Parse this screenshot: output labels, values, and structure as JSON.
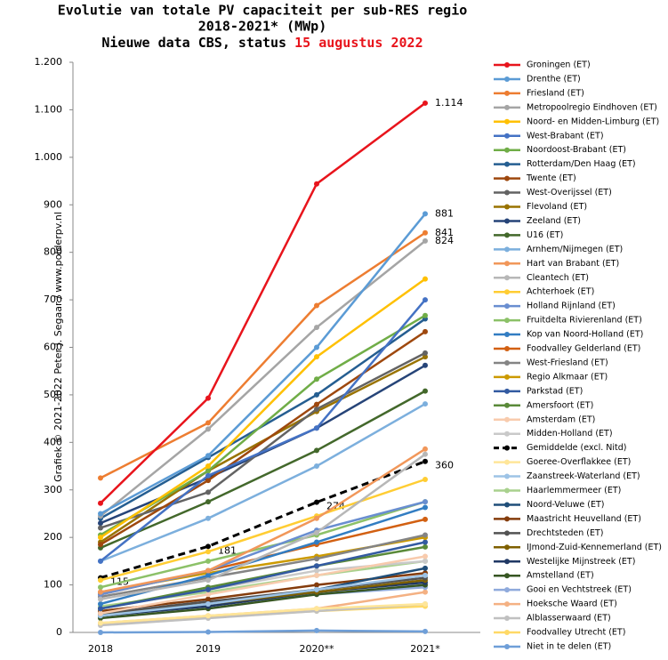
{
  "chart_data": {
    "type": "line",
    "title": "Evolutie van totale PV capaciteit per sub-RES regio",
    "subtitle": "2018-2021* (MWp)",
    "status_text": "Nieuwe data CBS, status",
    "status_date": "15 augustus 2022",
    "side_text": "Grafiek © 2021-2022 Peter J. Segaar / www.polderpv.nl",
    "categories": [
      "2018",
      "2019",
      "2020**",
      "2021*"
    ],
    "ylim": [
      0,
      1200
    ],
    "yticks": [
      0,
      100,
      200,
      300,
      400,
      500,
      600,
      700,
      800,
      900,
      {
        "value": 1000,
        "label": "1.000"
      },
      {
        "value": 1100,
        "label": "1.100"
      },
      {
        "value": 1200,
        "label": "1.200"
      }
    ],
    "series": [
      {
        "name": "Groningen (ET)",
        "color": "#e8141c",
        "values": [
          272,
          493,
          944,
          1114
        ],
        "value_labels": [
          null,
          null,
          null,
          "1.114"
        ]
      },
      {
        "name": "Drenthe (ET)",
        "color": "#5b9bd5",
        "values": [
          250,
          372,
          600,
          881
        ],
        "value_labels": [
          null,
          null,
          null,
          "881"
        ]
      },
      {
        "name": "Friesland (ET)",
        "color": "#ed7d31",
        "values": [
          325,
          441,
          688,
          841
        ],
        "value_labels": [
          null,
          null,
          null,
          "841"
        ]
      },
      {
        "name": "Metropoolregio Eindhoven (ET)",
        "color": "#a5a5a5",
        "values": [
          245,
          428,
          642,
          824
        ],
        "value_labels": [
          null,
          null,
          null,
          "824"
        ]
      },
      {
        "name": "Noord- en Midden-Limburg (ET)",
        "color": "#ffc000",
        "values": [
          200,
          350,
          580,
          744
        ]
      },
      {
        "name": "West-Brabant (ET)",
        "color": "#4472c4",
        "values": [
          150,
          330,
          430,
          700
        ]
      },
      {
        "name": "Noordoost-Brabant (ET)",
        "color": "#70ad47",
        "values": [
          205,
          340,
          533,
          667
        ]
      },
      {
        "name": "Rotterdam/Den Haag (ET)",
        "color": "#255e91",
        "values": [
          240,
          368,
          500,
          660
        ]
      },
      {
        "name": "Twente (ET)",
        "color": "#9e480e",
        "values": [
          185,
          320,
          480,
          633
        ]
      },
      {
        "name": "West-Overijssel (ET)",
        "color": "#636363",
        "values": [
          220,
          295,
          470,
          588
        ]
      },
      {
        "name": "Flevoland (ET)",
        "color": "#997300",
        "values": [
          190,
          340,
          465,
          580
        ]
      },
      {
        "name": "Zeeland (ET)",
        "color": "#264478",
        "values": [
          230,
          325,
          430,
          562
        ]
      },
      {
        "name": "U16 (ET)",
        "color": "#43682b",
        "values": [
          178,
          275,
          383,
          508
        ]
      },
      {
        "name": "Arnhem/Nijmegen (ET)",
        "color": "#7cafdd",
        "values": [
          150,
          240,
          350,
          481
        ]
      },
      {
        "name": "Hart van Brabant (ET)",
        "color": "#f1975a",
        "values": [
          85,
          130,
          240,
          386
        ]
      },
      {
        "name": "Cleantech (ET)",
        "color": "#b7b7b7",
        "values": [
          70,
          110,
          210,
          375
        ]
      },
      {
        "name": "Achterhoek (ET)",
        "color": "#ffcd33",
        "values": [
          110,
          170,
          245,
          322
        ]
      },
      {
        "name": "Holland Rijnland (ET)",
        "color": "#698ed0",
        "values": [
          80,
          130,
          215,
          275
        ]
      },
      {
        "name": "Fruitdelta Rivierenland (ET)",
        "color": "#8cc168",
        "values": [
          95,
          150,
          205,
          275
        ]
      },
      {
        "name": "Kop van Noord-Holland (ET)",
        "color": "#327dc2",
        "values": [
          60,
          120,
          190,
          263
        ]
      },
      {
        "name": "Foodvalley Gelderland (ET)",
        "color": "#d26012",
        "values": [
          80,
          130,
          185,
          238
        ]
      },
      {
        "name": "West-Friesland (ET)",
        "color": "#848484",
        "values": [
          75,
          115,
          155,
          205
        ]
      },
      {
        "name": "Regio Alkmaar (ET)",
        "color": "#cc9a00",
        "values": [
          85,
          125,
          160,
          200
        ]
      },
      {
        "name": "Parkstad (ET)",
        "color": "#335aa1",
        "values": [
          50,
          90,
          140,
          190
        ]
      },
      {
        "name": "Amersfoort (ET)",
        "color": "#5a8a39",
        "values": [
          50,
          95,
          140,
          180
        ]
      },
      {
        "name": "Amsterdam (ET)",
        "color": "#f8cbad",
        "values": [
          40,
          80,
          120,
          160
        ]
      },
      {
        "name": "Midden-Holland (ET)",
        "color": "#c9c9c9",
        "values": [
          50,
          90,
          130,
          150
        ]
      },
      {
        "name": "Gemiddelde (excl. Nitd)",
        "color": "#000000",
        "dashed": true,
        "values": [
          115,
          181,
          274,
          360
        ],
        "value_labels": [
          "115",
          "181",
          "274",
          "360"
        ]
      },
      {
        "name": "Goeree-Overflakkee (ET)",
        "color": "#ffe699",
        "values": [
          20,
          35,
          50,
          60
        ]
      },
      {
        "name": "Zaanstreek-Waterland (ET)",
        "color": "#9dc3e6",
        "values": [
          35,
          60,
          90,
          120
        ]
      },
      {
        "name": "Haarlemmermeer (ET)",
        "color": "#a9d18e",
        "values": [
          55,
          85,
          120,
          150
        ]
      },
      {
        "name": "Noord-Veluwe (ET)",
        "color": "#1f4e79",
        "values": [
          35,
          60,
          90,
          135
        ]
      },
      {
        "name": "Maastricht Heuvelland (ET)",
        "color": "#843c0c",
        "values": [
          45,
          70,
          100,
          125
        ]
      },
      {
        "name": "Drechtsteden (ET)",
        "color": "#525252",
        "values": [
          40,
          65,
          90,
          115
        ]
      },
      {
        "name": "IJmond-Zuid-Kennemerland (ET)",
        "color": "#7f6000",
        "values": [
          40,
          60,
          85,
          110
        ]
      },
      {
        "name": "Westelijke Mijnstreek (ET)",
        "color": "#203864",
        "values": [
          35,
          55,
          85,
          105
        ]
      },
      {
        "name": "Amstelland (ET)",
        "color": "#375623",
        "values": [
          30,
          50,
          80,
          100
        ]
      },
      {
        "name": "Gooi en Vechtstreek (ET)",
        "color": "#8faadc",
        "values": [
          40,
          60,
          80,
          95
        ]
      },
      {
        "name": "Hoeksche Waard (ET)",
        "color": "#f4b183",
        "values": [
          20,
          35,
          50,
          85
        ]
      },
      {
        "name": "Alblasserwaard (ET)",
        "color": "#c0c0c0",
        "values": [
          15,
          30,
          45,
          60
        ]
      },
      {
        "name": "Foodvalley Utrecht (ET)",
        "color": "#ffd966",
        "values": [
          18,
          32,
          45,
          55
        ]
      },
      {
        "name": "Niet in te delen (ET)",
        "color": "#6f9fd8",
        "values": [
          0,
          1,
          4,
          2
        ]
      }
    ]
  }
}
